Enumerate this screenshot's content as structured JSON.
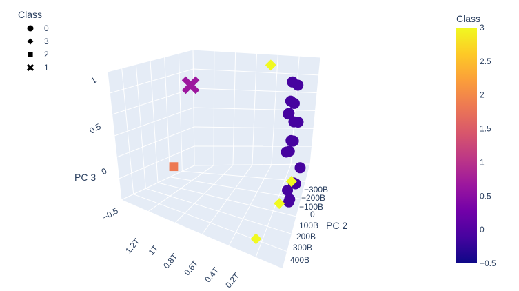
{
  "legend": {
    "title": "Class",
    "items": [
      {
        "label": "0",
        "symbol": "circle"
      },
      {
        "label": "3",
        "symbol": "diamond"
      },
      {
        "label": "2",
        "symbol": "square"
      },
      {
        "label": "1",
        "symbol": "x"
      }
    ]
  },
  "colorbar": {
    "title": "Class",
    "ticks": [
      "3",
      "2.5",
      "2",
      "1.5",
      "1",
      "0.5",
      "0",
      "−0.5"
    ],
    "colors": [
      "#0d0887",
      "#46039f",
      "#7201a8",
      "#9c179e",
      "#bd3786",
      "#d8576b",
      "#ed7953",
      "#fb9f3a",
      "#fdca26",
      "#f0f921"
    ]
  },
  "chart_data": {
    "type": "scatter3d",
    "title": "",
    "axes": {
      "x": {
        "label": "",
        "ticks": [
          "1.2T",
          "1T",
          "0.8T",
          "0.6T",
          "0.4T",
          "0.2T"
        ]
      },
      "y": {
        "label": "PC 2",
        "ticks": [
          "−300B",
          "−200B",
          "−100B",
          "0",
          "100B",
          "200B",
          "300B",
          "400B"
        ]
      },
      "z": {
        "label": "PC 3",
        "ticks": [
          "1",
          "0.5",
          "0",
          "−0.5"
        ],
        "range": [
          -0.7,
          1.1
        ]
      }
    },
    "grid": true,
    "color_scale": "plasma",
    "color_range": [
      -0.5,
      3
    ],
    "series": [
      {
        "class": "0",
        "symbol": "circle",
        "color": "#46039f",
        "points": [
          {
            "x": 0.05,
            "y": -150,
            "z": 1.0
          },
          {
            "x": 0.05,
            "y": -50,
            "z": 0.95
          },
          {
            "x": 0.08,
            "y": 0,
            "z": 0.9
          },
          {
            "x": 0.1,
            "y": -100,
            "z": 0.85
          },
          {
            "x": 0.07,
            "y": 50,
            "z": 1.02
          },
          {
            "x": 0.12,
            "y": -200,
            "z": 0.92
          },
          {
            "x": 0.05,
            "y": -150,
            "z": 0.4
          },
          {
            "x": 0.06,
            "y": -50,
            "z": 0.32
          },
          {
            "x": 0.08,
            "y": 0,
            "z": 0.26
          },
          {
            "x": 0.1,
            "y": -100,
            "z": 0.2
          },
          {
            "x": 0.09,
            "y": 50,
            "z": 0.36
          },
          {
            "x": 0.11,
            "y": -200,
            "z": 0.28
          },
          {
            "x": 0.05,
            "y": -200,
            "z": -0.45
          },
          {
            "x": 0.06,
            "y": -100,
            "z": -0.5
          },
          {
            "x": 0.08,
            "y": 0,
            "z": -0.55
          },
          {
            "x": 0.1,
            "y": -150,
            "z": -0.6
          },
          {
            "x": 0.07,
            "y": 50,
            "z": -0.48
          },
          {
            "x": 0.12,
            "y": -50,
            "z": -0.52
          }
        ]
      },
      {
        "class": "3",
        "symbol": "diamond",
        "color": "#f0f921",
        "points": [
          {
            "x": 0.35,
            "y": -250,
            "z": 1.05
          },
          {
            "x": 0.25,
            "y": 350,
            "z": -0.6
          },
          {
            "x": 0.12,
            "y": -150,
            "z": -0.58
          },
          {
            "x": 0.18,
            "y": 0,
            "z": -0.66
          }
        ]
      },
      {
        "class": "2",
        "symbol": "square",
        "color": "#ed7953",
        "points": [
          {
            "x": 1.05,
            "y": 150,
            "z": -0.2
          }
        ]
      },
      {
        "class": "1",
        "symbol": "x",
        "color": "#9c179e",
        "points": [
          {
            "x": 1.2,
            "y": -300,
            "z": 0.6
          }
        ]
      }
    ]
  }
}
